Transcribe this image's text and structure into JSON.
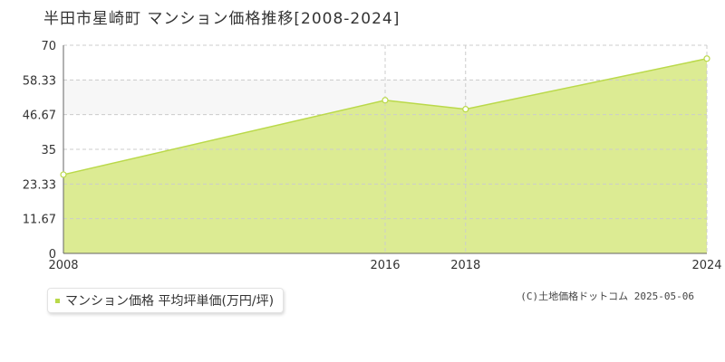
{
  "title": "半田市星崎町 マンション価格推移[2008-2024]",
  "legend": {
    "label": "マンション価格 平均坪単価(万円/坪)"
  },
  "copyright": "(C)土地価格ドットコム 2025-05-06",
  "colors": {
    "fill": "#dceb93",
    "line": "#bad94a",
    "grid": "#cccccc",
    "axis": "#666666",
    "band": "#f7f7f7"
  },
  "chart_data": {
    "type": "area",
    "x": [
      "2008",
      "2016",
      "2018",
      "2024"
    ],
    "series": [
      {
        "name": "マンション価格 平均坪単価(万円/坪)",
        "values": [
          26.5,
          51.5,
          48.5,
          65.5
        ]
      }
    ],
    "ylim": [
      0,
      70
    ],
    "yticks": [
      "0",
      "11.67",
      "23.33",
      "35",
      "46.67",
      "58.33",
      "70"
    ],
    "grid": true,
    "legend_position": "bottom-left"
  }
}
